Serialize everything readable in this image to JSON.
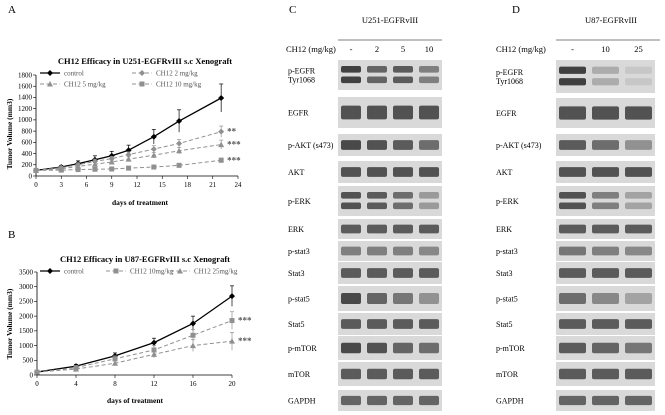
{
  "panels": {
    "A": "A",
    "B": "B",
    "C": "C",
    "D": "D"
  },
  "chart_data": [
    {
      "type": "line",
      "title": "CH12 Efficacy in U251-EGFRvIII s.c Xenograft",
      "xlabel": "days of treatment",
      "ylabel": "Tumor Volume (mm3)",
      "xlim": [
        0,
        24
      ],
      "ylim": [
        0,
        1800
      ],
      "xticks": [
        0,
        3,
        6,
        9,
        12,
        15,
        18,
        21,
        24
      ],
      "yticks": [
        0,
        200,
        400,
        600,
        800,
        1000,
        1200,
        1400,
        1600,
        1800
      ],
      "legend_position": "top",
      "series": [
        {
          "name": "control",
          "color": "#000000",
          "marker": "diamond",
          "dashed": false,
          "x": [
            0,
            3,
            5,
            7,
            9,
            11,
            14,
            17,
            22
          ],
          "y": [
            100,
            160,
            220,
            290,
            360,
            460,
            700,
            980,
            1390
          ],
          "err": [
            15,
            30,
            50,
            70,
            80,
            90,
            130,
            200,
            250
          ]
        },
        {
          "name": "CH12 2 mg/kg",
          "color": "#909090",
          "marker": "diamond",
          "dashed": true,
          "x": [
            0,
            3,
            5,
            7,
            9,
            11,
            14,
            17,
            22
          ],
          "y": [
            100,
            150,
            200,
            260,
            310,
            380,
            480,
            580,
            790
          ],
          "err": [
            10,
            20,
            30,
            40,
            40,
            50,
            60,
            70,
            100
          ]
        },
        {
          "name": "CH12 5 mg/kg",
          "color": "#909090",
          "marker": "triangle",
          "dashed": true,
          "x": [
            0,
            3,
            5,
            7,
            9,
            11,
            14,
            17,
            22
          ],
          "y": [
            100,
            130,
            170,
            210,
            250,
            300,
            370,
            450,
            560
          ],
          "err": [
            10,
            15,
            20,
            30,
            30,
            40,
            50,
            60,
            80
          ]
        },
        {
          "name": "CH12 10 mg/kg",
          "color": "#909090",
          "marker": "square",
          "dashed": true,
          "x": [
            0,
            3,
            5,
            7,
            9,
            11,
            14,
            17,
            22
          ],
          "y": [
            100,
            105,
            115,
            120,
            125,
            140,
            160,
            190,
            280
          ],
          "err": [
            8,
            10,
            12,
            15,
            15,
            20,
            25,
            30,
            40
          ]
        }
      ],
      "annotations": [
        "**",
        "***",
        "***"
      ]
    },
    {
      "type": "line",
      "title": "CH12 Efficacy in U87-EGFRvIII s.c Xenograft",
      "xlabel": "days of treatment",
      "ylabel": "Tumor Volume (mm3)",
      "xlim": [
        0,
        20
      ],
      "ylim": [
        0,
        3500
      ],
      "xticks": [
        0,
        4,
        8,
        12,
        16,
        20
      ],
      "yticks": [
        0,
        500,
        1000,
        1500,
        2000,
        2500,
        3000,
        3500
      ],
      "legend_position": "top",
      "series": [
        {
          "name": "control",
          "color": "#000000",
          "marker": "diamond",
          "dashed": false,
          "x": [
            0,
            4,
            8,
            12,
            16,
            20
          ],
          "y": [
            100,
            300,
            650,
            1100,
            1750,
            2680
          ],
          "err": [
            20,
            60,
            100,
            150,
            250,
            350
          ]
        },
        {
          "name": "CH12 10mg/kg",
          "color": "#909090",
          "marker": "square",
          "dashed": true,
          "x": [
            0,
            4,
            8,
            12,
            16,
            20
          ],
          "y": [
            100,
            250,
            550,
            850,
            1350,
            1850
          ],
          "err": [
            20,
            50,
            100,
            150,
            200,
            300
          ]
        },
        {
          "name": "CH12 25mg/kg",
          "color": "#909090",
          "marker": "triangle",
          "dashed": true,
          "x": [
            0,
            4,
            8,
            12,
            16,
            20
          ],
          "y": [
            100,
            200,
            400,
            700,
            1000,
            1150
          ],
          "err": [
            20,
            40,
            80,
            120,
            200,
            300
          ]
        }
      ],
      "annotations": [
        "***",
        "***"
      ]
    }
  ],
  "blots": {
    "C": {
      "header": "U251-EGFRvIII",
      "dose_label": "CH12 (mg/kg)",
      "doses": [
        "-",
        "2",
        "5",
        "10"
      ],
      "labels": [
        "p-EGFR\nTyr1068",
        "EGFR",
        "p-AKT (s473)",
        "AKT",
        "p-ERK",
        "ERK",
        "p-stat3",
        "Stat3",
        "p-stat5",
        "Stat5",
        "p-mTOR",
        "mTOR",
        "GAPDH"
      ]
    },
    "D": {
      "header": "U87-EGFRvIII",
      "dose_label": "CH12 (mg/kg)",
      "doses": [
        "-",
        "10",
        "25"
      ],
      "labels": [
        "p-EGFR\nTyr1068",
        "EGFR",
        "p-AKT (s473)",
        "AKT",
        "p-ERK",
        "ERK",
        "p-stat3",
        "Stat3",
        "p-stat5",
        "Stat5",
        "p-mTOR",
        "mTOR",
        "GAPDH"
      ]
    }
  }
}
